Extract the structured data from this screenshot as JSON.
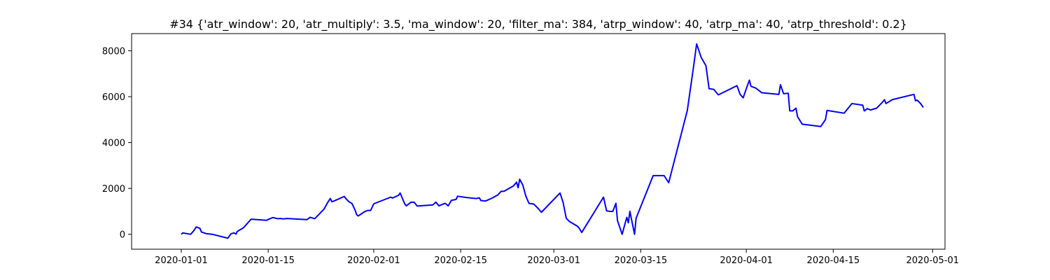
{
  "chart_data": {
    "type": "line",
    "title": "#34 {'atr_window': 20, 'atr_multiply': 3.5, 'ma_window': 20, 'filter_ma': 384, 'atrp_window': 40, 'atrp_ma': 40, 'atrp_threshold': 0.2}",
    "xlabel": "",
    "ylabel": "",
    "x_axis_type": "date",
    "xlim": [
      "2019-12-24",
      "2020-05-03"
    ],
    "ylim": [
      -650,
      8750
    ],
    "x_ticks": [
      "2020-01-01",
      "2020-01-15",
      "2020-02-01",
      "2020-02-15",
      "2020-03-01",
      "2020-03-15",
      "2020-04-01",
      "2020-04-15",
      "2020-05-01"
    ],
    "y_ticks": [
      0,
      2000,
      4000,
      6000,
      8000
    ],
    "grid": false,
    "series": [
      {
        "color": "#0000ff",
        "points": [
          [
            "2020-01-01",
            0
          ],
          [
            "2020-01-01T06:00",
            60
          ],
          [
            "2020-01-02T12:00",
            0
          ],
          [
            "2020-01-03",
            150
          ],
          [
            "2020-01-03T10:00",
            320
          ],
          [
            "2020-01-04",
            260
          ],
          [
            "2020-01-04T06:00",
            100
          ],
          [
            "2020-01-05",
            30
          ],
          [
            "2020-01-06",
            0
          ],
          [
            "2020-01-08T12:00",
            -170
          ],
          [
            "2020-01-09",
            20
          ],
          [
            "2020-01-09T12:00",
            60
          ],
          [
            "2020-01-09T20:00",
            10
          ],
          [
            "2020-01-10",
            120
          ],
          [
            "2020-01-11",
            280
          ],
          [
            "2020-01-12T06:00",
            660
          ],
          [
            "2020-01-14T18:00",
            610
          ],
          [
            "2020-01-15",
            650
          ],
          [
            "2020-01-15T18:00",
            730
          ],
          [
            "2020-01-16T12:00",
            680
          ],
          [
            "2020-01-17",
            690
          ],
          [
            "2020-01-17T12:00",
            670
          ],
          [
            "2020-01-18",
            690
          ],
          [
            "2020-01-21T06:00",
            640
          ],
          [
            "2020-01-21T18:00",
            740
          ],
          [
            "2020-01-22T12:00",
            680
          ],
          [
            "2020-01-23",
            820
          ],
          [
            "2020-01-24",
            1100
          ],
          [
            "2020-01-24T12:00",
            1350
          ],
          [
            "2020-01-25",
            1560
          ],
          [
            "2020-01-25T06:00",
            1420
          ],
          [
            "2020-01-25T18:00",
            1470
          ],
          [
            "2020-01-27T06:00",
            1650
          ],
          [
            "2020-01-27T12:00",
            1560
          ],
          [
            "2020-01-28",
            1420
          ],
          [
            "2020-01-28T12:00",
            1340
          ],
          [
            "2020-01-29",
            1050
          ],
          [
            "2020-01-29T06:00",
            850
          ],
          [
            "2020-01-29T12:00",
            800
          ],
          [
            "2020-01-30T12:00",
            980
          ],
          [
            "2020-01-31",
            1040
          ],
          [
            "2020-01-31T12:00",
            1040
          ],
          [
            "2020-02-01",
            1330
          ],
          [
            "2020-02-03T18:00",
            1620
          ],
          [
            "2020-02-04",
            1580
          ],
          [
            "2020-02-05",
            1700
          ],
          [
            "2020-02-05T06:00",
            1800
          ],
          [
            "2020-02-05T18:00",
            1480
          ],
          [
            "2020-02-06",
            1320
          ],
          [
            "2020-02-06T06:00",
            1240
          ],
          [
            "2020-02-07",
            1400
          ],
          [
            "2020-02-07T12:00",
            1400
          ],
          [
            "2020-02-08",
            1230
          ],
          [
            "2020-02-10T12:00",
            1280
          ],
          [
            "2020-02-11",
            1400
          ],
          [
            "2020-02-11T12:00",
            1240
          ],
          [
            "2020-02-12",
            1300
          ],
          [
            "2020-02-12T12:00",
            1350
          ],
          [
            "2020-02-13",
            1240
          ],
          [
            "2020-02-13T12:00",
            1480
          ],
          [
            "2020-02-14T06:00",
            1520
          ],
          [
            "2020-02-14T12:00",
            1660
          ],
          [
            "2020-02-16",
            1600
          ],
          [
            "2020-02-17T12:00",
            1560
          ],
          [
            "2020-02-18",
            1590
          ],
          [
            "2020-02-18T06:00",
            1470
          ],
          [
            "2020-02-19",
            1450
          ],
          [
            "2020-02-20",
            1570
          ],
          [
            "2020-02-21",
            1720
          ],
          [
            "2020-02-21T12:00",
            1870
          ],
          [
            "2020-02-22",
            1880
          ],
          [
            "2020-02-23T12:00",
            2110
          ],
          [
            "2020-02-24",
            2270
          ],
          [
            "2020-02-24T06:00",
            2030
          ],
          [
            "2020-02-24T12:00",
            2400
          ],
          [
            "2020-02-25",
            2150
          ],
          [
            "2020-02-25T12:00",
            1660
          ],
          [
            "2020-02-26",
            1350
          ],
          [
            "2020-02-26T18:00",
            1320
          ],
          [
            "2020-02-27T12:00",
            1120
          ],
          [
            "2020-02-28",
            960
          ],
          [
            "2020-03-02",
            1800
          ],
          [
            "2020-03-02T12:00",
            1380
          ],
          [
            "2020-03-03",
            700
          ],
          [
            "2020-03-03T12:00",
            560
          ],
          [
            "2020-03-04T18:00",
            360
          ],
          [
            "2020-03-05",
            300
          ],
          [
            "2020-03-05T12:00",
            80
          ],
          [
            "2020-03-09",
            1620
          ],
          [
            "2020-03-09T12:00",
            1020
          ],
          [
            "2020-03-10",
            1000
          ],
          [
            "2020-03-10T12:00",
            1000
          ],
          [
            "2020-03-11",
            1350
          ],
          [
            "2020-03-11T06:00",
            600
          ],
          [
            "2020-03-12",
            0
          ],
          [
            "2020-03-12T18:00",
            740
          ],
          [
            "2020-03-13",
            500
          ],
          [
            "2020-03-13T06:00",
            1000
          ],
          [
            "2020-03-14",
            0
          ],
          [
            "2020-03-14T06:00",
            700
          ],
          [
            "2020-03-17",
            2560
          ],
          [
            "2020-03-18T18:00",
            2560
          ],
          [
            "2020-03-19T12:00",
            2250
          ],
          [
            "2020-03-22T12:00",
            5400
          ],
          [
            "2020-03-23T12:00",
            7300
          ],
          [
            "2020-03-24",
            8300
          ],
          [
            "2020-03-24T18:00",
            7700
          ],
          [
            "2020-03-25T12:00",
            7350
          ],
          [
            "2020-03-26",
            6350
          ],
          [
            "2020-03-26T18:00",
            6320
          ],
          [
            "2020-03-27T12:00",
            6080
          ],
          [
            "2020-03-30T12:00",
            6480
          ],
          [
            "2020-03-31",
            6100
          ],
          [
            "2020-03-31T12:00",
            5950
          ],
          [
            "2020-04-01",
            6350
          ],
          [
            "2020-04-01T12:00",
            6720
          ],
          [
            "2020-04-01T18:00",
            6450
          ],
          [
            "2020-04-02T12:00",
            6380
          ],
          [
            "2020-04-03T12:00",
            6170
          ],
          [
            "2020-04-06T06:00",
            6100
          ],
          [
            "2020-04-06T12:00",
            6520
          ],
          [
            "2020-04-07",
            6130
          ],
          [
            "2020-04-07T18:00",
            6150
          ],
          [
            "2020-04-08",
            5380
          ],
          [
            "2020-04-08T12:00",
            5380
          ],
          [
            "2020-04-09",
            5500
          ],
          [
            "2020-04-09T06:00",
            5130
          ],
          [
            "2020-04-10",
            4800
          ],
          [
            "2020-04-13",
            4700
          ],
          [
            "2020-04-13T18:00",
            5000
          ],
          [
            "2020-04-14",
            5400
          ],
          [
            "2020-04-16T18:00",
            5280
          ],
          [
            "2020-04-17T12:00",
            5530
          ],
          [
            "2020-04-18",
            5700
          ],
          [
            "2020-04-19T18:00",
            5630
          ],
          [
            "2020-04-20",
            5380
          ],
          [
            "2020-04-20T12:00",
            5480
          ],
          [
            "2020-04-21",
            5420
          ],
          [
            "2020-04-22",
            5500
          ],
          [
            "2020-04-23",
            5780
          ],
          [
            "2020-04-23T06:00",
            5870
          ],
          [
            "2020-04-23T12:00",
            5700
          ],
          [
            "2020-04-24T12:00",
            5870
          ],
          [
            "2020-04-28",
            6100
          ],
          [
            "2020-04-28T06:00",
            5820
          ],
          [
            "2020-04-28T12:00",
            5850
          ],
          [
            "2020-04-29",
            5720
          ],
          [
            "2020-04-29T06:00",
            5630
          ],
          [
            "2020-04-29T12:00",
            5530
          ]
        ]
      }
    ]
  }
}
